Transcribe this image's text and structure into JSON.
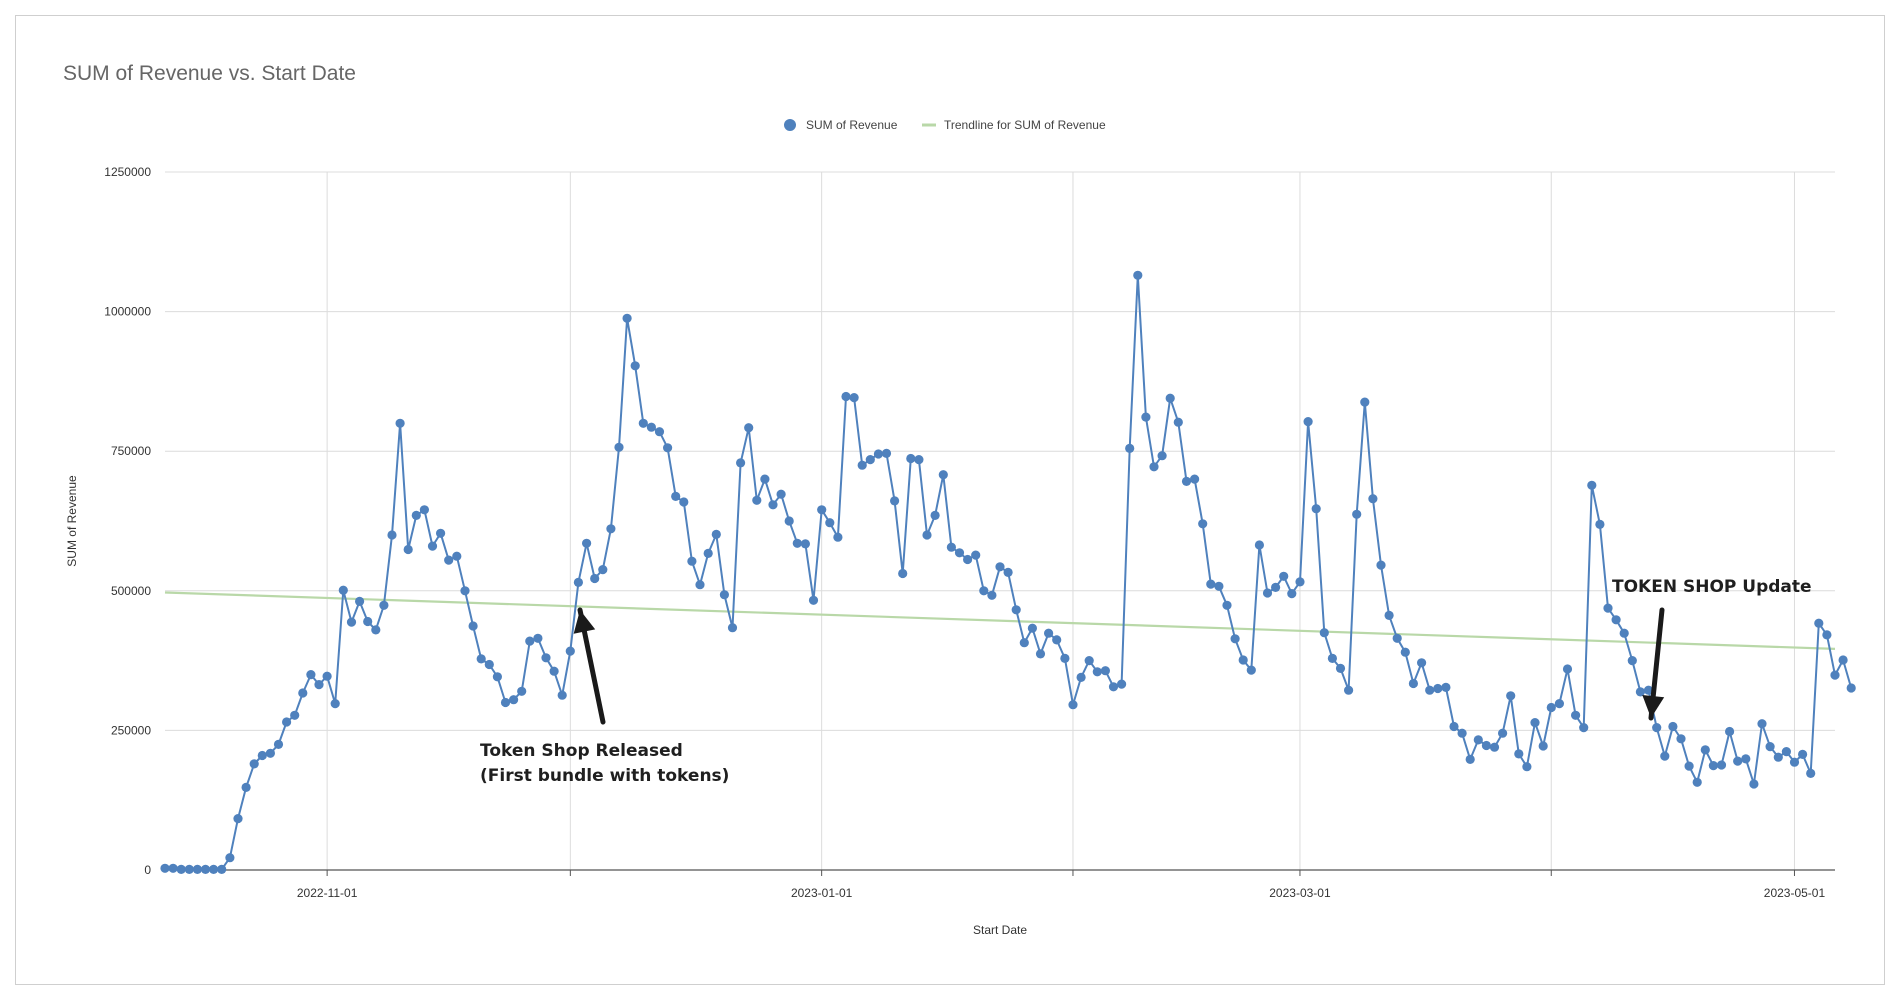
{
  "chart_data": {
    "type": "line",
    "title": "SUM of Revenue vs. Start Date",
    "xlabel": "Start Date",
    "ylabel": "SUM of Revenue",
    "x_range": [
      "2022-10-12",
      "2023-05-06"
    ],
    "ylim": [
      0,
      1250000
    ],
    "yticks": [
      0,
      250000,
      500000,
      750000,
      1000000,
      1250000
    ],
    "xticks": [
      "2022-11-01",
      "2023-01-01",
      "2023-03-01",
      "2023-05-01"
    ],
    "grid": true,
    "legend_placement": "top-center",
    "colors": {
      "series": "#4f81bd",
      "trendline": "#b9d8a8"
    },
    "series": [
      {
        "name": "SUM of Revenue",
        "start_date": "2022-10-12",
        "values": [
          3000,
          3000,
          1000,
          1000,
          1000,
          1000,
          1000,
          1000,
          22000,
          92000,
          148000,
          190000,
          205000,
          209000,
          225000,
          265000,
          277000,
          317000,
          350000,
          332000,
          347000,
          298000,
          501000,
          444000,
          481000,
          445000,
          430000,
          474000,
          600000,
          800000,
          574000,
          635000,
          645000,
          580000,
          603000,
          555000,
          562000,
          500000,
          437000,
          378000,
          368000,
          346000,
          300000,
          305000,
          320000,
          410000,
          415000,
          380000,
          356000,
          313000,
          392000,
          515000,
          585000,
          522000,
          538000,
          611000,
          757000,
          988000,
          903000,
          800000,
          793000,
          785000,
          756000,
          669000,
          659000,
          553000,
          511000,
          567000,
          601000,
          493000,
          434000,
          729000,
          792000,
          662000,
          700000,
          654000,
          673000,
          625000,
          585000,
          584000,
          483000,
          645000,
          622000,
          596000,
          848000,
          846000,
          725000,
          735000,
          745000,
          746000,
          661000,
          531000,
          737000,
          735000,
          600000,
          635000,
          708000,
          578000,
          568000,
          556000,
          564000,
          500000,
          492000,
          543000,
          533000,
          466000,
          407000,
          433000,
          387000,
          424000,
          412000,
          379000,
          296000,
          345000,
          375000,
          355000,
          357000,
          328000,
          333000,
          755000,
          1065000,
          811000,
          722000,
          742000,
          845000,
          802000,
          696000,
          700000,
          620000,
          512000,
          508000,
          474000,
          414000,
          376000,
          358000,
          582000,
          496000,
          506000,
          526000,
          495000,
          516000,
          803000,
          647000,
          425000,
          379000,
          361000,
          322000,
          637000,
          838000,
          665000,
          546000,
          456000,
          415000,
          390000,
          334000,
          371000,
          322000,
          325000,
          327000,
          257000,
          245000,
          198000,
          233000,
          223000,
          220000,
          245000,
          312000,
          208000,
          185000,
          264000,
          222000,
          291000,
          298000,
          360000,
          277000,
          255000,
          689000,
          619000,
          469000,
          448000,
          424000,
          375000,
          319000,
          322000,
          255000,
          204000,
          257000,
          235000,
          186000,
          157000,
          215000,
          187000,
          188000,
          248000,
          195000,
          199000,
          154000,
          262000,
          221000,
          202000,
          212000,
          193000,
          207000,
          173000,
          442000,
          421000,
          349000,
          376000,
          326000
        ]
      },
      {
        "name": "Trendline for SUM of Revenue",
        "endpoints": [
          [
            "2022-10-12",
            497000
          ],
          [
            "2023-05-06",
            396000
          ]
        ]
      }
    ],
    "annotations": [
      {
        "lines": [
          "Token Shop Released",
          "(First bundle with tokens)"
        ],
        "arrow_points_to": "2022-12-05"
      },
      {
        "lines": [
          "TOKEN SHOP Update"
        ],
        "arrow_points_to": "2023-04-14"
      }
    ]
  }
}
